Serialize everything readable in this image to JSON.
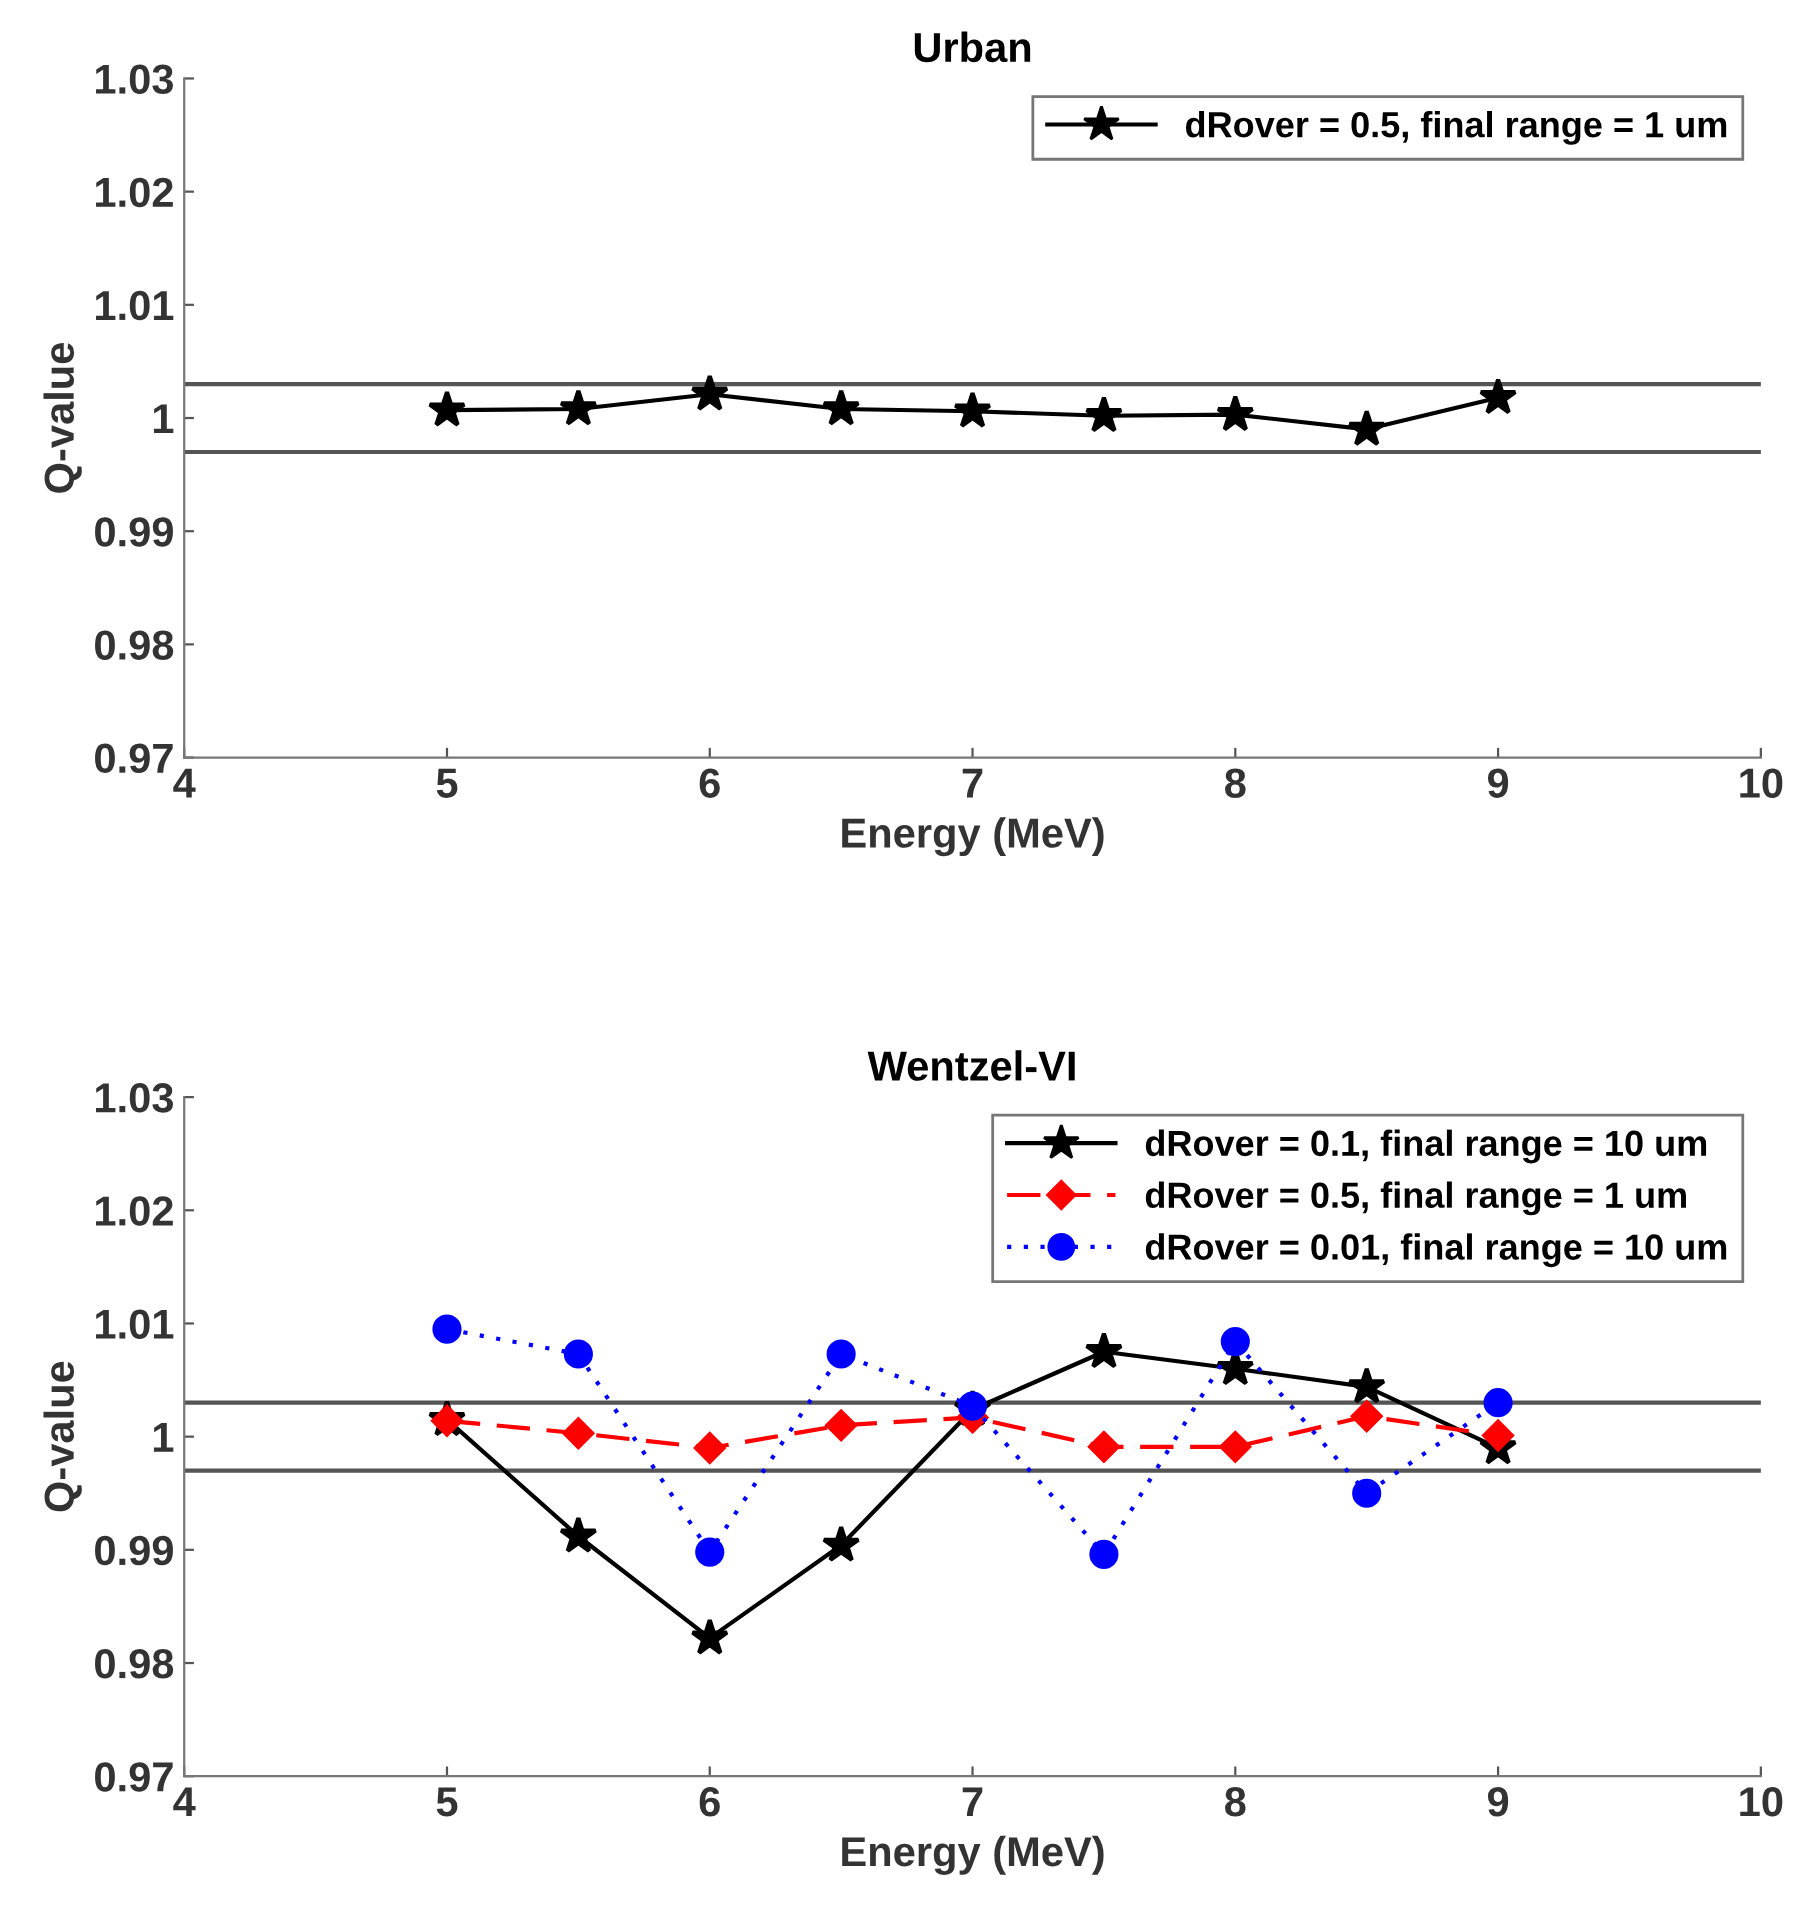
{
  "chart_data": [
    {
      "type": "line",
      "title": "Urban",
      "xlabel": "Energy (MeV)",
      "ylabel": "Q-value",
      "x": [
        5,
        5.5,
        6,
        6.5,
        7,
        7.5,
        8,
        8.5,
        9
      ],
      "xlim": [
        4,
        10
      ],
      "xticks": [
        4,
        5,
        6,
        7,
        8,
        9,
        10
      ],
      "ylim": [
        0.97,
        1.03
      ],
      "yticks": [
        0.97,
        0.98,
        0.99,
        1,
        1.01,
        1.02,
        1.03
      ],
      "grid": false,
      "legend": "top right",
      "series": [
        {
          "name": "dRover = 0.5, final range = 1 um",
          "color": "#000000",
          "marker": "star",
          "line_style": "solid",
          "values": [
            1.0007,
            1.0008,
            1.0021,
            1.0008,
            1.0006,
            1.0002,
            1.0003,
            0.999,
            1.0018
          ],
          "errors": [
            0.0004,
            0.0004,
            0.0004,
            0.0004,
            0.0004,
            0.0004,
            0.0004,
            0.0004,
            0.0004
          ]
        }
      ],
      "ref_lines": [
        {
          "axis": "y",
          "value": 1.003,
          "color": "#555555"
        },
        {
          "axis": "y",
          "value": 0.997,
          "color": "#555555"
        }
      ]
    },
    {
      "type": "line",
      "title": "Wentzel-VI",
      "xlabel": "Energy (MeV)",
      "ylabel": "Q-value",
      "x": [
        5,
        5.5,
        6,
        6.5,
        7,
        7.5,
        8,
        8.5,
        9
      ],
      "xlim": [
        4,
        10
      ],
      "xticks": [
        4,
        5,
        6,
        7,
        8,
        9,
        10
      ],
      "ylim": [
        0.97,
        1.03
      ],
      "yticks": [
        0.97,
        0.98,
        0.99,
        1,
        1.01,
        1.02,
        1.03
      ],
      "grid": false,
      "legend": "top right",
      "series": [
        {
          "name": "dRover = 0.1, final range = 10 um",
          "color": "#000000",
          "marker": "star",
          "line_style": "solid",
          "values": [
            1.0015,
            0.9912,
            0.9822,
            0.9904,
            1.0024,
            1.0075,
            1.006,
            1.0044,
            0.999
          ],
          "errors": [
            null,
            0.0004,
            0.0004,
            0.0004,
            null,
            0.0004,
            0.0004,
            0.0004,
            0.0004
          ]
        },
        {
          "name": "dRover = 0.5, final range = 1 um",
          "color": "#ff0000",
          "marker": "diamond",
          "line_style": "dashed",
          "values": [
            1.0014,
            1.0003,
            0.999,
            1.001,
            1.0017,
            0.9991,
            0.9991,
            1.0018,
            1.0001
          ],
          "errors": [
            null,
            0.0004,
            0.0004,
            0.0004,
            0.0004,
            0.0004,
            0.0004,
            0.0004,
            0.0004
          ]
        },
        {
          "name": "dRover = 0.01, final range = 10 um",
          "color": "#0000ff",
          "marker": "circle",
          "line_style": "dotted",
          "values": [
            1.0095,
            1.0073,
            0.9898,
            1.0073,
            1.0027,
            0.9896,
            1.0084,
            0.995,
            1.003
          ],
          "errors": [
            0.0004,
            0.0004,
            0.0004,
            0.0004,
            0.0004,
            0.0004,
            0.0004,
            0.0004,
            0.0004
          ]
        }
      ],
      "ref_lines": [
        {
          "axis": "y",
          "value": 1.003,
          "color": "#555555"
        },
        {
          "axis": "y",
          "value": 0.997,
          "color": "#555555"
        }
      ]
    }
  ]
}
